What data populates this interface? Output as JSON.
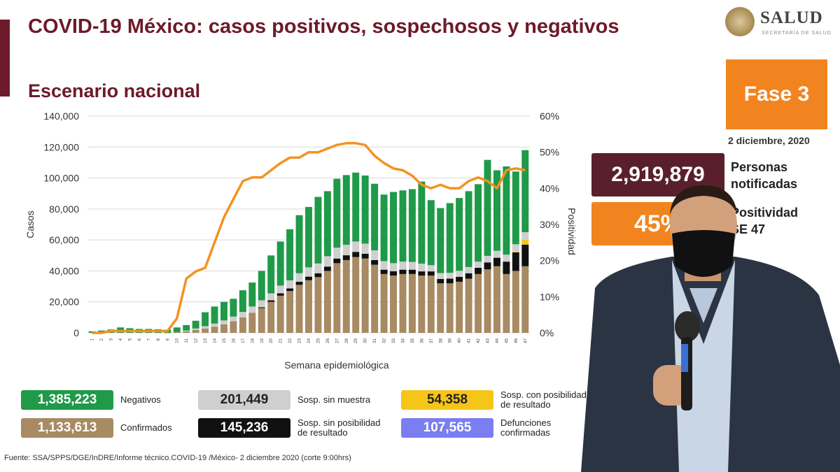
{
  "header": {
    "title": "COVID-19 México: casos positivos, sospechosos y negativos",
    "subtitle": "Escenario nacional"
  },
  "logo": {
    "name": "SALUD",
    "sub": "SECRETARÍA DE SALUD"
  },
  "phase": {
    "label": "Fase 3",
    "color": "#f2841f"
  },
  "report_date": "2 diciembre, 2020",
  "stats": [
    {
      "value": "2,919,879",
      "label_line1": "Personas",
      "label_line2": "notificadas",
      "color": "#5a1f2c"
    },
    {
      "value": "45%",
      "label_line1": "Positividad",
      "label_line2": "SE 47",
      "color": "#f2841f"
    }
  ],
  "legend": [
    {
      "value": "1,385,223",
      "label_line1": "Negativos",
      "label_line2": "",
      "color": "#1f9a48",
      "text_color": "#ffffff"
    },
    {
      "value": "201,449",
      "label_line1": "Sosp. sin muestra",
      "label_line2": "",
      "color": "#cfcfcf",
      "text_color": "#222222"
    },
    {
      "value": "54,358",
      "label_line1": "Sosp. con posibilidad",
      "label_line2": "de resultado",
      "color": "#f5c518",
      "text_color": "#222222"
    },
    {
      "value": "1,133,613",
      "label_line1": "Confirmados",
      "label_line2": "",
      "color": "#a88a63",
      "text_color": "#ffffff"
    },
    {
      "value": "145,236",
      "label_line1": "Sosp. sin posibilidad",
      "label_line2": "de resultado",
      "color": "#111111",
      "text_color": "#ffffff"
    },
    {
      "value": "107,565",
      "label_line1": "Defunciones",
      "label_line2": "confirmadas",
      "color": "#7b7ef0",
      "text_color": "#ffffff"
    }
  ],
  "source": "Fuente: SSA/SPPS/DGE/InDRE/Informe técnico.COVID-19 /México- 2 diciembre 2020 (corte 9:00hrs)",
  "chart_data": {
    "type": "bar",
    "stacked": true,
    "xlabel": "Semana epidemiológica",
    "ylabel": "Casos",
    "y2label": "Positividad",
    "ylim": [
      0,
      140000
    ],
    "y2lim": [
      0,
      60
    ],
    "yticks": [
      "0",
      "20,000",
      "40,000",
      "60,000",
      "80,000",
      "100,000",
      "120,000",
      "140,000"
    ],
    "y2ticks": [
      "0%",
      "10%",
      "20%",
      "30%",
      "40%",
      "50%",
      "60%"
    ],
    "grid": true,
    "categories": [
      "1",
      "2",
      "3",
      "4",
      "5",
      "6",
      "7",
      "8",
      "9",
      "10",
      "11",
      "12",
      "13",
      "14",
      "15",
      "16",
      "17",
      "18",
      "19",
      "20",
      "21",
      "22",
      "23",
      "24",
      "25",
      "26",
      "27",
      "28",
      "29",
      "30",
      "31",
      "32",
      "33",
      "34",
      "35",
      "36",
      "37",
      "38",
      "39",
      "40",
      "41",
      "42",
      "43",
      "44",
      "45",
      "46",
      "47"
    ],
    "series": [
      {
        "name": "Confirmados",
        "color": "#a88a63",
        "values": [
          0,
          0,
          0,
          0,
          0,
          0,
          0,
          0,
          50,
          500,
          1000,
          1800,
          2800,
          4000,
          5500,
          7500,
          10000,
          13000,
          16000,
          20000,
          24000,
          27000,
          31000,
          34000,
          36000,
          40000,
          45000,
          47000,
          49000,
          48000,
          44000,
          38000,
          37000,
          38000,
          38000,
          37000,
          37000,
          32000,
          32000,
          33000,
          35000,
          38000,
          41000,
          43000,
          38000,
          40000,
          43000
        ]
      },
      {
        "name": "Sosp. sin posibilidad de resultado",
        "color": "#111111",
        "values": [
          0,
          0,
          0,
          0,
          0,
          0,
          0,
          0,
          0,
          0,
          0,
          0,
          0,
          0,
          0,
          0,
          0,
          0,
          500,
          1000,
          1500,
          1700,
          2000,
          2300,
          2500,
          2800,
          3000,
          3100,
          3300,
          3100,
          3000,
          2800,
          2800,
          2800,
          2800,
          2700,
          2700,
          2800,
          3000,
          3200,
          3500,
          4000,
          4500,
          5500,
          8000,
          12000,
          14000
        ]
      },
      {
        "name": "Sosp. con posibilidad de resultado",
        "color": "#f5c518",
        "values": [
          0,
          0,
          0,
          0,
          0,
          0,
          0,
          0,
          0,
          0,
          0,
          0,
          0,
          0,
          0,
          0,
          0,
          0,
          0,
          0,
          0,
          0,
          0,
          0,
          0,
          0,
          0,
          0,
          0,
          0,
          0,
          0,
          0,
          0,
          0,
          0,
          0,
          0,
          0,
          0,
          0,
          0,
          0,
          0,
          0,
          500,
          3000
        ]
      },
      {
        "name": "Sosp. sin muestra",
        "color": "#cfcfcf",
        "values": [
          0,
          0,
          0,
          0,
          0,
          0,
          0,
          0,
          0,
          0,
          500,
          1000,
          1500,
          2000,
          2500,
          3000,
          3500,
          4000,
          4500,
          4500,
          5000,
          5200,
          5500,
          6000,
          6300,
          6700,
          7000,
          6800,
          6700,
          6500,
          6300,
          5500,
          5200,
          5200,
          5000,
          5000,
          4000,
          3800,
          3800,
          3900,
          4000,
          4000,
          4200,
          4500,
          4500,
          4700,
          5000
        ]
      },
      {
        "name": "Negativos",
        "color": "#1f9a48",
        "values": [
          1000,
          1500,
          2200,
          3500,
          3000,
          2500,
          2500,
          2300,
          2000,
          3000,
          3500,
          5000,
          9000,
          11000,
          12000,
          11500,
          14000,
          15500,
          19000,
          24500,
          28500,
          33000,
          37500,
          39000,
          43000,
          42000,
          44500,
          45000,
          44500,
          44000,
          43000,
          43000,
          46000,
          46000,
          47000,
          53000,
          42000,
          42000,
          45000,
          47000,
          49000,
          50000,
          62000,
          52000,
          57000,
          47000,
          53000
        ]
      }
    ],
    "line": {
      "name": "Positividad",
      "color": "#f29322",
      "values": [
        0,
        0,
        0.5,
        0.5,
        0.5,
        0.5,
        0.5,
        0.5,
        0.5,
        4,
        15,
        17,
        18,
        25,
        32,
        37,
        42,
        43,
        43,
        45,
        47,
        48.5,
        48.5,
        50,
        50,
        51,
        52,
        52.5,
        52.5,
        52,
        49,
        47,
        45.5,
        45,
        43.5,
        41,
        40,
        41,
        40,
        40,
        42,
        43,
        42,
        40,
        45,
        45.5,
        45
      ]
    }
  }
}
